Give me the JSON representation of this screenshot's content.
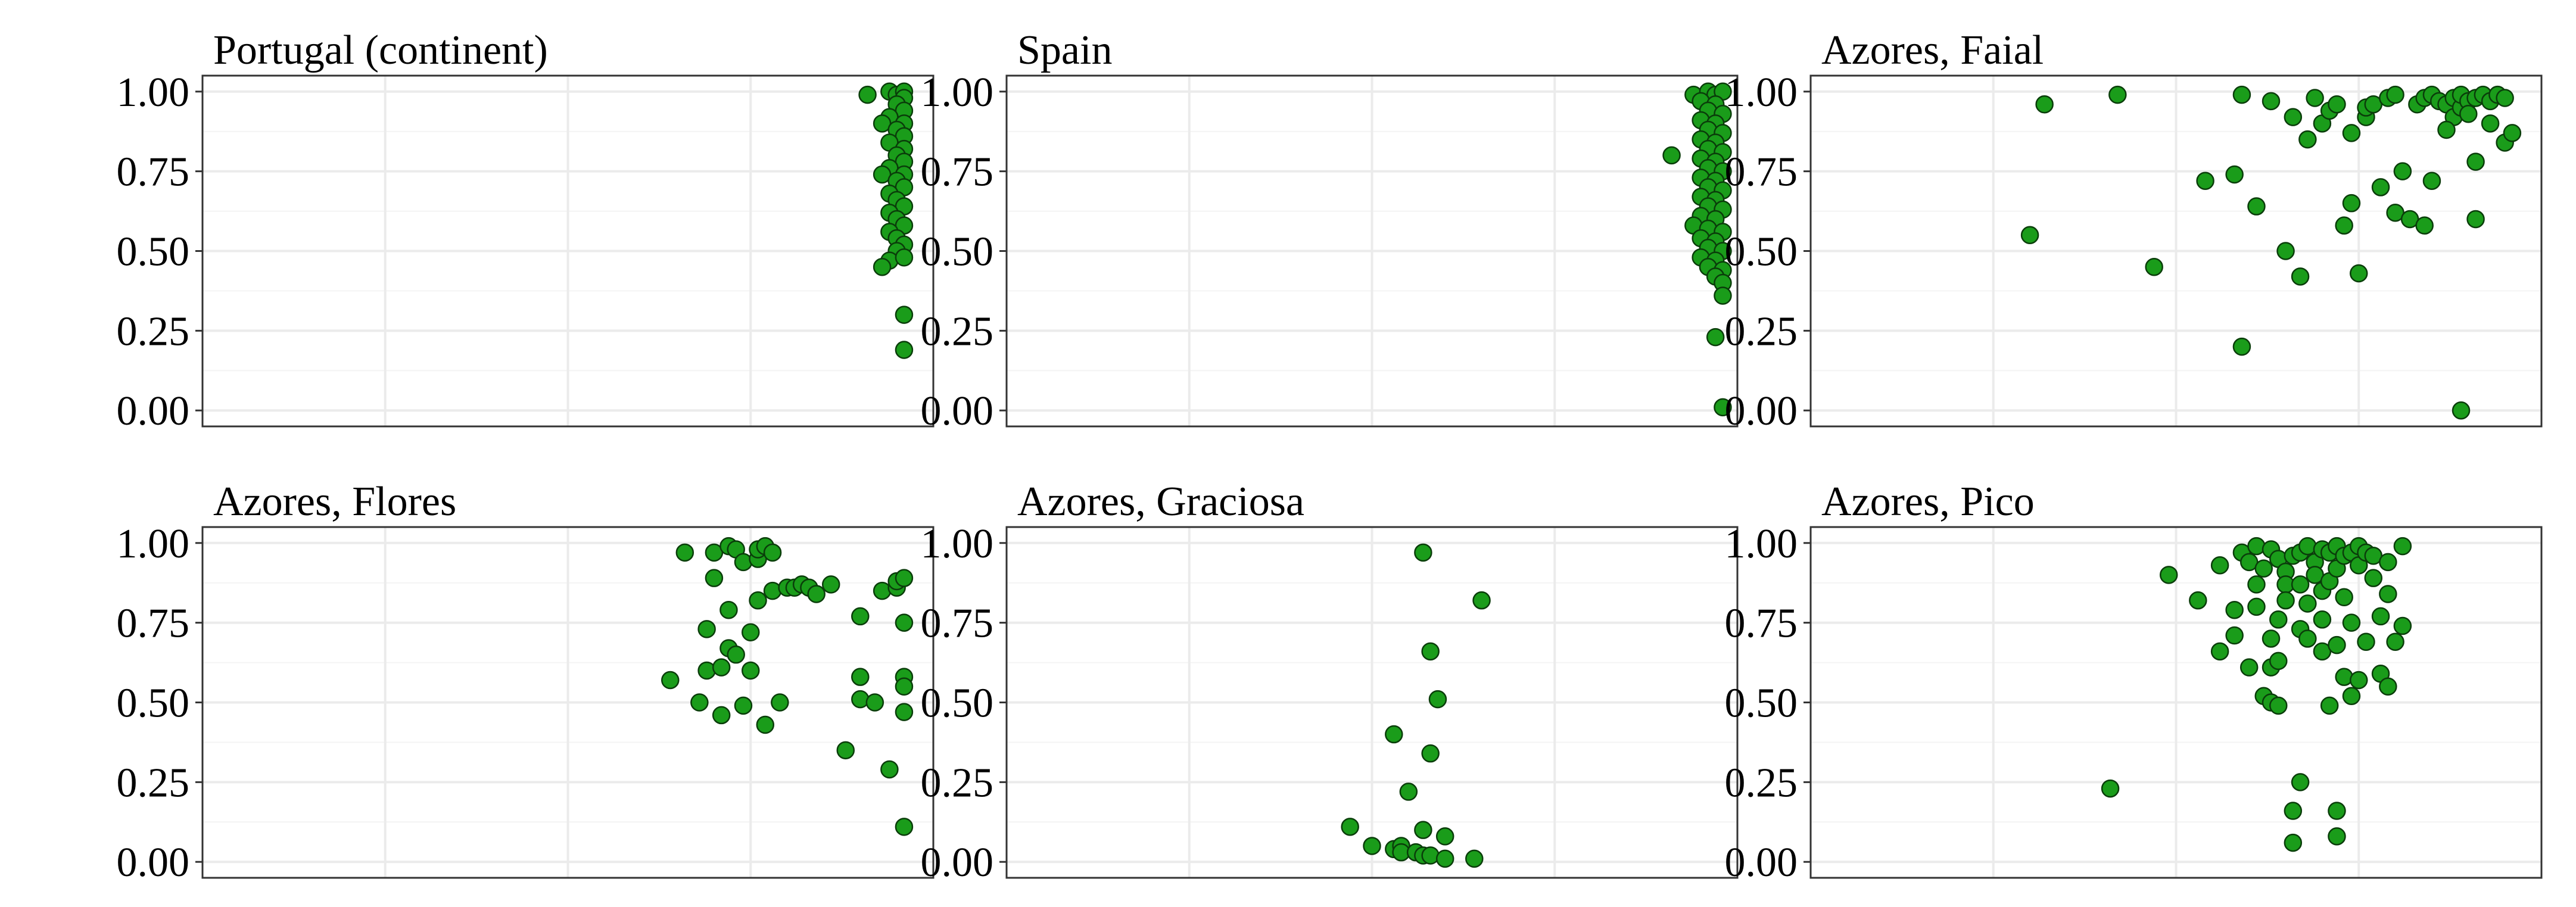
{
  "chart_data": [
    {
      "type": "scatter",
      "title": "Portugal (continent)",
      "xlabel": "",
      "ylabel": "",
      "xlim": [
        0,
        1
      ],
      "ylim": [
        -0.05,
        1.05
      ],
      "yticks": [
        "0.00",
        "0.25",
        "0.50",
        "0.75",
        "1.00"
      ],
      "grid": true,
      "points": [
        [
          0.91,
          0.99
        ],
        [
          0.94,
          1.0
        ],
        [
          0.95,
          0.99
        ],
        [
          0.96,
          1.0
        ],
        [
          0.96,
          0.98
        ],
        [
          0.95,
          0.96
        ],
        [
          0.96,
          0.94
        ],
        [
          0.94,
          0.92
        ],
        [
          0.93,
          0.9
        ],
        [
          0.96,
          0.9
        ],
        [
          0.95,
          0.88
        ],
        [
          0.96,
          0.86
        ],
        [
          0.94,
          0.84
        ],
        [
          0.96,
          0.82
        ],
        [
          0.95,
          0.8
        ],
        [
          0.96,
          0.78
        ],
        [
          0.94,
          0.76
        ],
        [
          0.93,
          0.74
        ],
        [
          0.96,
          0.74
        ],
        [
          0.95,
          0.72
        ],
        [
          0.96,
          0.7
        ],
        [
          0.94,
          0.68
        ],
        [
          0.95,
          0.66
        ],
        [
          0.96,
          0.64
        ],
        [
          0.94,
          0.62
        ],
        [
          0.95,
          0.6
        ],
        [
          0.96,
          0.58
        ],
        [
          0.94,
          0.56
        ],
        [
          0.95,
          0.54
        ],
        [
          0.96,
          0.52
        ],
        [
          0.95,
          0.5
        ],
        [
          0.94,
          0.47
        ],
        [
          0.93,
          0.45
        ],
        [
          0.96,
          0.48
        ],
        [
          0.96,
          0.3
        ],
        [
          0.96,
          0.19
        ]
      ]
    },
    {
      "type": "scatter",
      "title": "Spain",
      "xlabel": "",
      "ylabel": "",
      "xlim": [
        0,
        1
      ],
      "ylim": [
        -0.05,
        1.05
      ],
      "yticks": [
        "0.00",
        "0.25",
        "0.50",
        "0.75",
        "1.00"
      ],
      "grid": true,
      "points": [
        [
          0.94,
          0.99
        ],
        [
          0.96,
          1.0
        ],
        [
          0.97,
          0.99
        ],
        [
          0.98,
          1.0
        ],
        [
          0.95,
          0.97
        ],
        [
          0.97,
          0.96
        ],
        [
          0.96,
          0.94
        ],
        [
          0.98,
          0.93
        ],
        [
          0.95,
          0.91
        ],
        [
          0.97,
          0.9
        ],
        [
          0.96,
          0.88
        ],
        [
          0.98,
          0.87
        ],
        [
          0.95,
          0.85
        ],
        [
          0.97,
          0.84
        ],
        [
          0.96,
          0.82
        ],
        [
          0.98,
          0.81
        ],
        [
          0.91,
          0.8
        ],
        [
          0.95,
          0.79
        ],
        [
          0.97,
          0.78
        ],
        [
          0.96,
          0.76
        ],
        [
          0.98,
          0.75
        ],
        [
          0.95,
          0.73
        ],
        [
          0.97,
          0.72
        ],
        [
          0.96,
          0.7
        ],
        [
          0.98,
          0.69
        ],
        [
          0.95,
          0.67
        ],
        [
          0.97,
          0.66
        ],
        [
          0.96,
          0.64
        ],
        [
          0.98,
          0.63
        ],
        [
          0.95,
          0.61
        ],
        [
          0.97,
          0.6
        ],
        [
          0.94,
          0.58
        ],
        [
          0.96,
          0.57
        ],
        [
          0.98,
          0.56
        ],
        [
          0.95,
          0.54
        ],
        [
          0.97,
          0.53
        ],
        [
          0.96,
          0.51
        ],
        [
          0.98,
          0.5
        ],
        [
          0.95,
          0.48
        ],
        [
          0.97,
          0.47
        ],
        [
          0.96,
          0.45
        ],
        [
          0.98,
          0.44
        ],
        [
          0.97,
          0.42
        ],
        [
          0.98,
          0.4
        ],
        [
          0.98,
          0.36
        ],
        [
          0.97,
          0.23
        ],
        [
          0.98,
          0.01
        ]
      ]
    },
    {
      "type": "scatter",
      "title": "Azores, Faial",
      "xlabel": "",
      "ylabel": "",
      "xlim": [
        0,
        1
      ],
      "ylim": [
        -0.05,
        1.05
      ],
      "yticks": [
        "0.00",
        "0.25",
        "0.50",
        "0.75",
        "1.00"
      ],
      "grid": true,
      "points": [
        [
          0.3,
          0.55
        ],
        [
          0.32,
          0.96
        ],
        [
          0.42,
          0.99
        ],
        [
          0.47,
          0.45
        ],
        [
          0.54,
          0.72
        ],
        [
          0.58,
          0.74
        ],
        [
          0.59,
          0.99
        ],
        [
          0.59,
          0.2
        ],
        [
          0.61,
          0.64
        ],
        [
          0.63,
          0.97
        ],
        [
          0.65,
          0.5
        ],
        [
          0.66,
          0.92
        ],
        [
          0.67,
          0.42
        ],
        [
          0.68,
          0.85
        ],
        [
          0.69,
          0.98
        ],
        [
          0.7,
          0.9
        ],
        [
          0.71,
          0.94
        ],
        [
          0.72,
          0.96
        ],
        [
          0.73,
          0.58
        ],
        [
          0.74,
          0.65
        ],
        [
          0.75,
          0.43
        ],
        [
          0.74,
          0.87
        ],
        [
          0.76,
          0.92
        ],
        [
          0.76,
          0.95
        ],
        [
          0.77,
          0.96
        ],
        [
          0.78,
          0.7
        ],
        [
          0.79,
          0.98
        ],
        [
          0.8,
          0.99
        ],
        [
          0.8,
          0.62
        ],
        [
          0.81,
          0.75
        ],
        [
          0.82,
          0.6
        ],
        [
          0.83,
          0.96
        ],
        [
          0.84,
          0.58
        ],
        [
          0.84,
          0.98
        ],
        [
          0.85,
          0.99
        ],
        [
          0.86,
          0.97
        ],
        [
          0.87,
          0.96
        ],
        [
          0.88,
          0.98
        ],
        [
          0.88,
          0.92
        ],
        [
          0.89,
          0.95
        ],
        [
          0.89,
          0.99
        ],
        [
          0.9,
          0.97
        ],
        [
          0.9,
          0.93
        ],
        [
          0.91,
          0.98
        ],
        [
          0.91,
          0.78
        ],
        [
          0.91,
          0.6
        ],
        [
          0.92,
          0.99
        ],
        [
          0.93,
          0.97
        ],
        [
          0.93,
          0.9
        ],
        [
          0.94,
          0.99
        ],
        [
          0.95,
          0.98
        ],
        [
          0.95,
          0.84
        ],
        [
          0.96,
          0.87
        ],
        [
          0.89,
          0.0
        ],
        [
          0.85,
          0.72
        ],
        [
          0.87,
          0.88
        ]
      ]
    },
    {
      "type": "scatter",
      "title": "Azores, Flores",
      "xlabel": "",
      "ylabel": "",
      "xlim": [
        0,
        1
      ],
      "ylim": [
        -0.05,
        1.05
      ],
      "yticks": [
        "0.00",
        "0.25",
        "0.50",
        "0.75",
        "1.00"
      ],
      "grid": true,
      "points": [
        [
          0.64,
          0.57
        ],
        [
          0.66,
          0.97
        ],
        [
          0.68,
          0.5
        ],
        [
          0.69,
          0.6
        ],
        [
          0.69,
          0.73
        ],
        [
          0.7,
          0.97
        ],
        [
          0.7,
          0.89
        ],
        [
          0.71,
          0.61
        ],
        [
          0.71,
          0.46
        ],
        [
          0.72,
          0.79
        ],
        [
          0.72,
          0.67
        ],
        [
          0.72,
          0.99
        ],
        [
          0.73,
          0.98
        ],
        [
          0.73,
          0.65
        ],
        [
          0.74,
          0.94
        ],
        [
          0.74,
          0.49
        ],
        [
          0.75,
          0.72
        ],
        [
          0.75,
          0.6
        ],
        [
          0.76,
          0.95
        ],
        [
          0.76,
          0.82
        ],
        [
          0.76,
          0.98
        ],
        [
          0.77,
          0.99
        ],
        [
          0.77,
          0.43
        ],
        [
          0.78,
          0.97
        ],
        [
          0.78,
          0.85
        ],
        [
          0.79,
          0.5
        ],
        [
          0.8,
          0.86
        ],
        [
          0.81,
          0.86
        ],
        [
          0.82,
          0.87
        ],
        [
          0.83,
          0.86
        ],
        [
          0.84,
          0.84
        ],
        [
          0.86,
          0.87
        ],
        [
          0.88,
          0.35
        ],
        [
          0.9,
          0.58
        ],
        [
          0.9,
          0.77
        ],
        [
          0.9,
          0.51
        ],
        [
          0.92,
          0.5
        ],
        [
          0.93,
          0.85
        ],
        [
          0.94,
          0.29
        ],
        [
          0.95,
          0.86
        ],
        [
          0.95,
          0.88
        ],
        [
          0.96,
          0.89
        ],
        [
          0.96,
          0.75
        ],
        [
          0.96,
          0.58
        ],
        [
          0.96,
          0.55
        ],
        [
          0.96,
          0.47
        ],
        [
          0.96,
          0.11
        ]
      ]
    },
    {
      "type": "scatter",
      "title": "Azores, Graciosa",
      "xlabel": "",
      "ylabel": "",
      "xlim": [
        0,
        1
      ],
      "ylim": [
        -0.05,
        1.05
      ],
      "yticks": [
        "0.00",
        "0.25",
        "0.50",
        "0.75",
        "1.00"
      ],
      "grid": true,
      "points": [
        [
          0.47,
          0.11
        ],
        [
          0.5,
          0.05
        ],
        [
          0.53,
          0.4
        ],
        [
          0.53,
          0.04
        ],
        [
          0.54,
          0.05
        ],
        [
          0.54,
          0.03
        ],
        [
          0.55,
          0.22
        ],
        [
          0.56,
          0.03
        ],
        [
          0.57,
          0.02
        ],
        [
          0.57,
          0.1
        ],
        [
          0.57,
          0.97
        ],
        [
          0.58,
          0.66
        ],
        [
          0.58,
          0.34
        ],
        [
          0.58,
          0.02
        ],
        [
          0.59,
          0.51
        ],
        [
          0.6,
          0.08
        ],
        [
          0.6,
          0.01
        ],
        [
          0.64,
          0.01
        ],
        [
          0.65,
          0.82
        ]
      ]
    },
    {
      "type": "scatter",
      "title": "Azores, Pico",
      "xlabel": "",
      "ylabel": "",
      "xlim": [
        0,
        1
      ],
      "ylim": [
        -0.05,
        1.05
      ],
      "yticks": [
        "0.00",
        "0.25",
        "0.50",
        "0.75",
        "1.00"
      ],
      "grid": true,
      "points": [
        [
          0.41,
          0.23
        ],
        [
          0.49,
          0.9
        ],
        [
          0.53,
          0.82
        ],
        [
          0.56,
          0.93
        ],
        [
          0.56,
          0.66
        ],
        [
          0.58,
          0.71
        ],
        [
          0.58,
          0.79
        ],
        [
          0.59,
          0.97
        ],
        [
          0.6,
          0.94
        ],
        [
          0.6,
          0.61
        ],
        [
          0.61,
          0.99
        ],
        [
          0.61,
          0.87
        ],
        [
          0.61,
          0.8
        ],
        [
          0.62,
          0.52
        ],
        [
          0.62,
          0.92
        ],
        [
          0.63,
          0.98
        ],
        [
          0.63,
          0.7
        ],
        [
          0.63,
          0.61
        ],
        [
          0.63,
          0.5
        ],
        [
          0.64,
          0.95
        ],
        [
          0.64,
          0.76
        ],
        [
          0.64,
          0.63
        ],
        [
          0.64,
          0.49
        ],
        [
          0.65,
          0.91
        ],
        [
          0.65,
          0.87
        ],
        [
          0.65,
          0.82
        ],
        [
          0.66,
          0.96
        ],
        [
          0.66,
          0.16
        ],
        [
          0.66,
          0.06
        ],
        [
          0.67,
          0.97
        ],
        [
          0.67,
          0.87
        ],
        [
          0.67,
          0.73
        ],
        [
          0.67,
          0.25
        ],
        [
          0.68,
          0.99
        ],
        [
          0.68,
          0.81
        ],
        [
          0.68,
          0.7
        ],
        [
          0.69,
          0.94
        ],
        [
          0.69,
          0.9
        ],
        [
          0.7,
          0.98
        ],
        [
          0.7,
          0.85
        ],
        [
          0.7,
          0.76
        ],
        [
          0.7,
          0.66
        ],
        [
          0.71,
          0.97
        ],
        [
          0.71,
          0.88
        ],
        [
          0.71,
          0.49
        ],
        [
          0.72,
          0.99
        ],
        [
          0.72,
          0.92
        ],
        [
          0.72,
          0.68
        ],
        [
          0.72,
          0.16
        ],
        [
          0.72,
          0.08
        ],
        [
          0.73,
          0.96
        ],
        [
          0.73,
          0.83
        ],
        [
          0.73,
          0.58
        ],
        [
          0.74,
          0.97
        ],
        [
          0.74,
          0.75
        ],
        [
          0.74,
          0.52
        ],
        [
          0.75,
          0.99
        ],
        [
          0.75,
          0.93
        ],
        [
          0.75,
          0.57
        ],
        [
          0.76,
          0.97
        ],
        [
          0.76,
          0.69
        ],
        [
          0.77,
          0.89
        ],
        [
          0.77,
          0.96
        ],
        [
          0.78,
          0.77
        ],
        [
          0.78,
          0.59
        ],
        [
          0.79,
          0.94
        ],
        [
          0.79,
          0.84
        ],
        [
          0.79,
          0.55
        ],
        [
          0.8,
          0.69
        ],
        [
          0.81,
          0.99
        ],
        [
          0.81,
          0.74
        ]
      ]
    }
  ]
}
